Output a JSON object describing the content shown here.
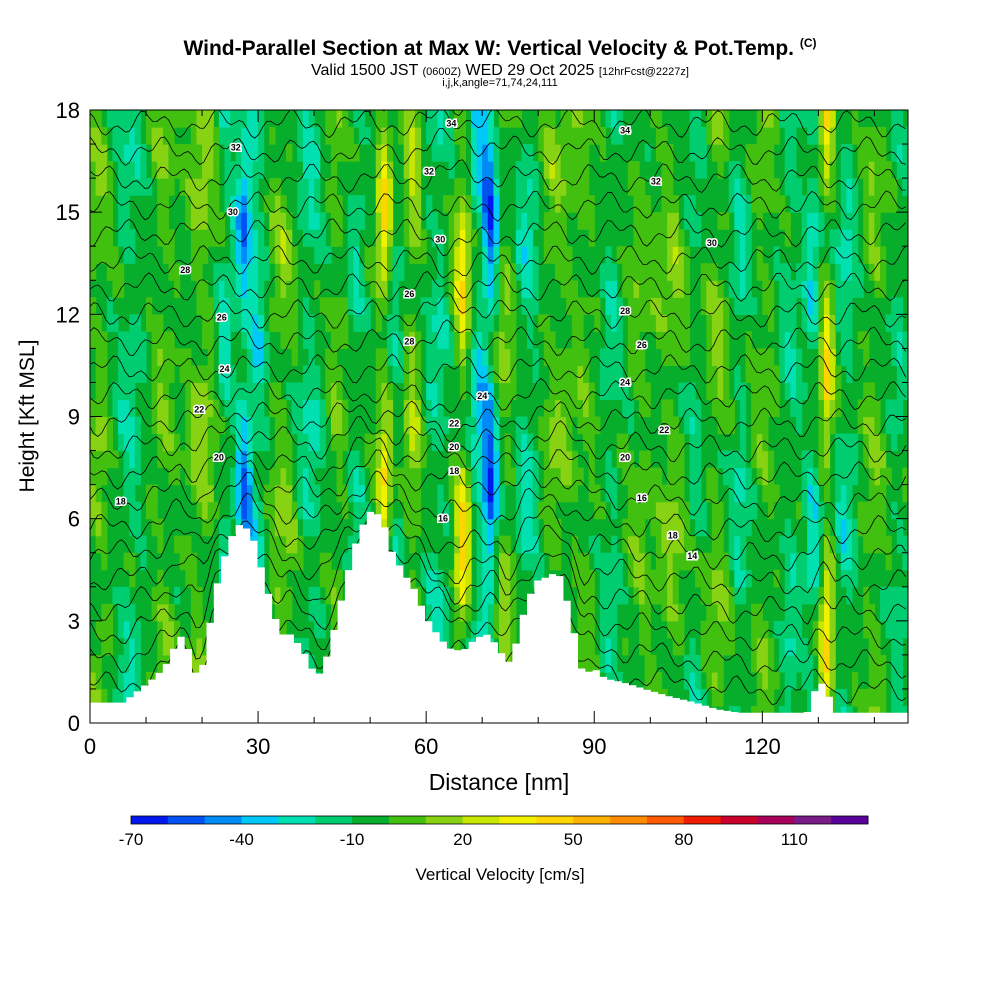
{
  "title": {
    "main": "Wind-Parallel Section at Max W: Vertical Velocity & Pot.Temp.",
    "units": "(C)",
    "valid_prefix": "Valid 1500 JST",
    "valid_utc": "(0600Z)",
    "valid_date": "WED 29 Oct 2025",
    "forecast": "[12hrFcst@2227z]",
    "ijk": "i,j,k,angle=71,74,24,111"
  },
  "chart_data": {
    "type": "heatmap",
    "xlabel": "Distance [nm]",
    "ylabel": "Height [Kft MSL]",
    "xlim": [
      0,
      146
    ],
    "ylim": [
      0,
      18
    ],
    "xticks": [
      0,
      30,
      60,
      90,
      120
    ],
    "yticks": [
      0,
      3,
      6,
      9,
      12,
      15,
      18
    ],
    "colorbar": {
      "label": "Vertical Velocity [cm/s]",
      "ticks": [
        -70,
        -40,
        -10,
        20,
        50,
        80,
        110
      ],
      "levels": [
        -70,
        -60,
        -50,
        -40,
        -30,
        -20,
        -10,
        0,
        10,
        20,
        30,
        40,
        50,
        60,
        70,
        80,
        90,
        100,
        110,
        120
      ],
      "colors": [
        "#0018ee",
        "#0051f2",
        "#008af5",
        "#00c8f8",
        "#00e0b0",
        "#00cc70",
        "#06ae2c",
        "#42c010",
        "#88d214",
        "#c8e600",
        "#f2f200",
        "#ffd500",
        "#ffb000",
        "#ff8c00",
        "#ff5a00",
        "#ef1c00",
        "#c8002a",
        "#a8005a",
        "#7a1a88",
        "#580098"
      ]
    },
    "terrain_kft": [
      [
        0,
        0.6
      ],
      [
        6,
        0.6
      ],
      [
        9,
        1.0
      ],
      [
        12,
        1.4
      ],
      [
        14,
        1.8
      ],
      [
        16,
        2.6
      ],
      [
        17.5,
        2.2
      ],
      [
        19,
        1.4
      ],
      [
        20.5,
        1.8
      ],
      [
        22,
        3.6
      ],
      [
        23.5,
        4.6
      ],
      [
        25,
        5.4
      ],
      [
        27,
        5.9
      ],
      [
        29,
        5.5
      ],
      [
        31,
        4.3
      ],
      [
        32.5,
        3.4
      ],
      [
        34,
        2.6
      ],
      [
        36,
        2.6
      ],
      [
        38.5,
        2.0
      ],
      [
        40.5,
        1.3
      ],
      [
        42,
        1.8
      ],
      [
        44,
        3.0
      ],
      [
        46,
        4.4
      ],
      [
        48,
        5.6
      ],
      [
        50,
        6.2
      ],
      [
        52,
        6.1
      ],
      [
        54,
        5.0
      ],
      [
        56,
        4.4
      ],
      [
        58,
        3.9
      ],
      [
        60,
        3.1
      ],
      [
        62,
        2.6
      ],
      [
        64,
        2.2
      ],
      [
        66.5,
        2.1
      ],
      [
        69,
        2.5
      ],
      [
        71,
        2.6
      ],
      [
        73,
        2.2
      ],
      [
        74.5,
        1.7
      ],
      [
        76,
        2.3
      ],
      [
        78,
        3.6
      ],
      [
        80,
        4.2
      ],
      [
        82,
        4.3
      ],
      [
        83.5,
        4.5
      ],
      [
        85,
        3.7
      ],
      [
        86.5,
        2.6
      ],
      [
        88,
        1.4
      ],
      [
        90,
        1.6
      ],
      [
        92,
        1.3
      ],
      [
        95,
        1.2
      ],
      [
        99,
        1.0
      ],
      [
        103,
        0.8
      ],
      [
        108,
        0.6
      ],
      [
        112,
        0.4
      ],
      [
        116,
        0.3
      ],
      [
        128,
        0.3
      ],
      [
        129.5,
        1.0
      ],
      [
        131,
        1.2
      ],
      [
        133,
        0.3
      ],
      [
        146,
        0.3
      ]
    ],
    "theta_labels": [
      {
        "x": 5.5,
        "z": 6.5,
        "text": "18"
      },
      {
        "x": 17,
        "z": 13.3,
        "text": "28"
      },
      {
        "x": 19.5,
        "z": 9.2,
        "text": "22"
      },
      {
        "x": 23,
        "z": 7.8,
        "text": "20"
      },
      {
        "x": 24,
        "z": 10.4,
        "text": "24"
      },
      {
        "x": 23.5,
        "z": 11.9,
        "text": "26"
      },
      {
        "x": 25.5,
        "z": 15.0,
        "text": "30"
      },
      {
        "x": 26,
        "z": 16.9,
        "text": "32"
      },
      {
        "x": 57,
        "z": 12.6,
        "text": "26"
      },
      {
        "x": 57,
        "z": 11.2,
        "text": "28"
      },
      {
        "x": 60.5,
        "z": 16.2,
        "text": "32"
      },
      {
        "x": 62.5,
        "z": 14.2,
        "text": "30"
      },
      {
        "x": 63,
        "z": 6.0,
        "text": "16"
      },
      {
        "x": 64.5,
        "z": 17.6,
        "text": "34"
      },
      {
        "x": 65,
        "z": 7.4,
        "text": "18"
      },
      {
        "x": 65,
        "z": 8.1,
        "text": "20"
      },
      {
        "x": 65,
        "z": 8.8,
        "text": "22"
      },
      {
        "x": 70,
        "z": 9.6,
        "text": "24"
      },
      {
        "x": 95.5,
        "z": 12.1,
        "text": "28"
      },
      {
        "x": 95.5,
        "z": 10.0,
        "text": "24"
      },
      {
        "x": 95.5,
        "z": 7.8,
        "text": "20"
      },
      {
        "x": 95.5,
        "z": 17.4,
        "text": "34"
      },
      {
        "x": 98.5,
        "z": 11.1,
        "text": "26"
      },
      {
        "x": 98.5,
        "z": 6.6,
        "text": "16"
      },
      {
        "x": 101,
        "z": 15.9,
        "text": "32"
      },
      {
        "x": 102.5,
        "z": 8.6,
        "text": "22"
      },
      {
        "x": 104,
        "z": 5.5,
        "text": "18"
      },
      {
        "x": 107.5,
        "z": 4.9,
        "text": "14"
      },
      {
        "x": 111,
        "z": 14.1,
        "text": "30"
      }
    ]
  }
}
